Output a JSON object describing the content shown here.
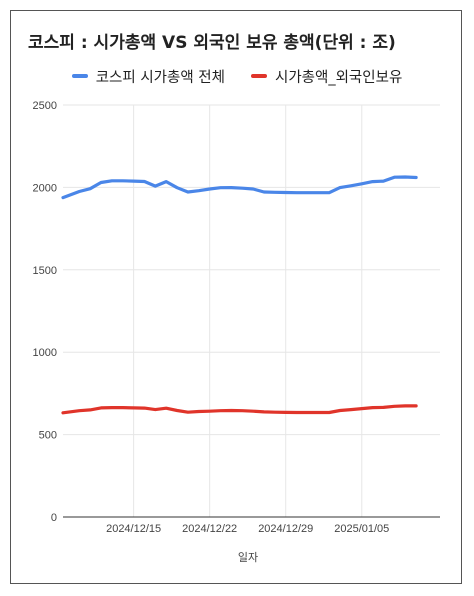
{
  "chart_data": {
    "type": "line",
    "title": "코스피 : 시가총액 VS 외국인 보유 총액(단위 : 조)",
    "xlabel": "일자",
    "ylabel": "",
    "ylim": [
      0,
      2500
    ],
    "yticks": [
      "0",
      "500",
      "1000",
      "1500",
      "2000",
      "2500"
    ],
    "xticks": [
      {
        "label": "2024/12/15",
        "x": 5
      },
      {
        "label": "2024/12/22",
        "x": 12
      },
      {
        "label": "2024/12/29",
        "x": 19
      },
      {
        "label": "2025/01/05",
        "x": 26
      }
    ],
    "xlim": [
      -1.5,
      33.2
    ],
    "grid": "vertical and horizontal",
    "legend_position": "top",
    "series": [
      {
        "name": "코스피 시가총액 전체",
        "color": "#4a86e8",
        "points": [
          [
            -1.5,
            1938
          ],
          [
            0,
            1975
          ],
          [
            1,
            1992
          ],
          [
            2,
            2030
          ],
          [
            3,
            2040
          ],
          [
            4,
            2040
          ],
          [
            5,
            2038
          ],
          [
            6,
            2036
          ],
          [
            7,
            2008
          ],
          [
            8,
            2035
          ],
          [
            9,
            1998
          ],
          [
            10,
            1972
          ],
          [
            11,
            1980
          ],
          [
            12,
            1990
          ],
          [
            13,
            1998
          ],
          [
            14,
            1999
          ],
          [
            15,
            1995
          ],
          [
            16,
            1990
          ],
          [
            17,
            1972
          ],
          [
            18,
            1970
          ],
          [
            19,
            1969
          ],
          [
            20,
            1968
          ],
          [
            21,
            1968
          ],
          [
            22,
            1968
          ],
          [
            23,
            1968
          ],
          [
            24,
            1999
          ],
          [
            25,
            2010
          ],
          [
            26,
            2022
          ],
          [
            27,
            2035
          ],
          [
            28,
            2038
          ],
          [
            29,
            2062
          ],
          [
            30,
            2063
          ],
          [
            31,
            2060
          ]
        ]
      },
      {
        "name": "시가총액_외국인보유",
        "color": "#e0342a",
        "points": [
          [
            -1.5,
            632
          ],
          [
            0,
            645
          ],
          [
            1,
            650
          ],
          [
            2,
            662
          ],
          [
            3,
            664
          ],
          [
            4,
            664
          ],
          [
            5,
            662
          ],
          [
            6,
            661
          ],
          [
            7,
            652
          ],
          [
            8,
            660
          ],
          [
            9,
            646
          ],
          [
            10,
            636
          ],
          [
            11,
            640
          ],
          [
            12,
            642
          ],
          [
            13,
            645
          ],
          [
            14,
            646
          ],
          [
            15,
            645
          ],
          [
            16,
            642
          ],
          [
            17,
            638
          ],
          [
            18,
            636
          ],
          [
            19,
            635
          ],
          [
            20,
            634
          ],
          [
            21,
            634
          ],
          [
            22,
            634
          ],
          [
            23,
            634
          ],
          [
            24,
            646
          ],
          [
            25,
            652
          ],
          [
            26,
            658
          ],
          [
            27,
            664
          ],
          [
            28,
            665
          ],
          [
            29,
            672
          ],
          [
            30,
            674
          ],
          [
            31,
            674
          ]
        ]
      }
    ]
  }
}
